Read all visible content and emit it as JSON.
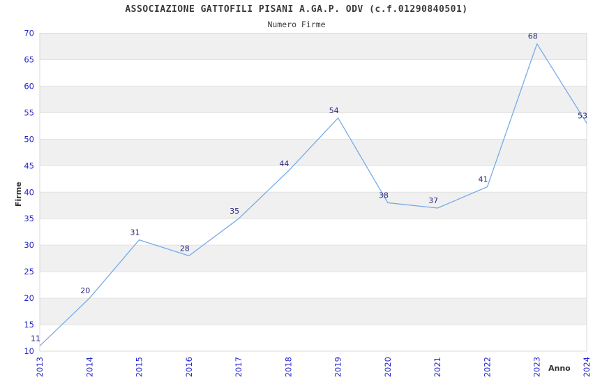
{
  "chart_data": {
    "type": "line",
    "title": "ASSOCIAZIONE GATTOFILI PISANI A.GA.P. ODV (c.f.01290840501)",
    "subtitle": "Numero Firme",
    "xlabel": "Anno",
    "ylabel": "Firme",
    "categories": [
      "2013",
      "2014",
      "2015",
      "2016",
      "2017",
      "2018",
      "2019",
      "2020",
      "2021",
      "2022",
      "2023",
      "2024"
    ],
    "values": [
      11,
      20,
      31,
      28,
      35,
      44,
      54,
      38,
      37,
      41,
      68,
      53
    ],
    "ylim": [
      10,
      70
    ],
    "ytick_step": 5,
    "y_ticks": [
      10,
      15,
      20,
      25,
      30,
      35,
      40,
      45,
      50,
      55,
      60,
      65,
      70
    ],
    "grid": "horizontal-bands",
    "legend": "none",
    "markers": "none",
    "data_labels_visible": true,
    "colors": {
      "line": "#76abe8",
      "tick_label": "#2424cc",
      "data_label": "#27277f",
      "band": "#f0f0f0",
      "gridline": "#e3e3e3",
      "spine": "#d8d8d8",
      "title": "#3a3a3a",
      "axis_label": "#333333",
      "background": "#ffffff"
    }
  }
}
